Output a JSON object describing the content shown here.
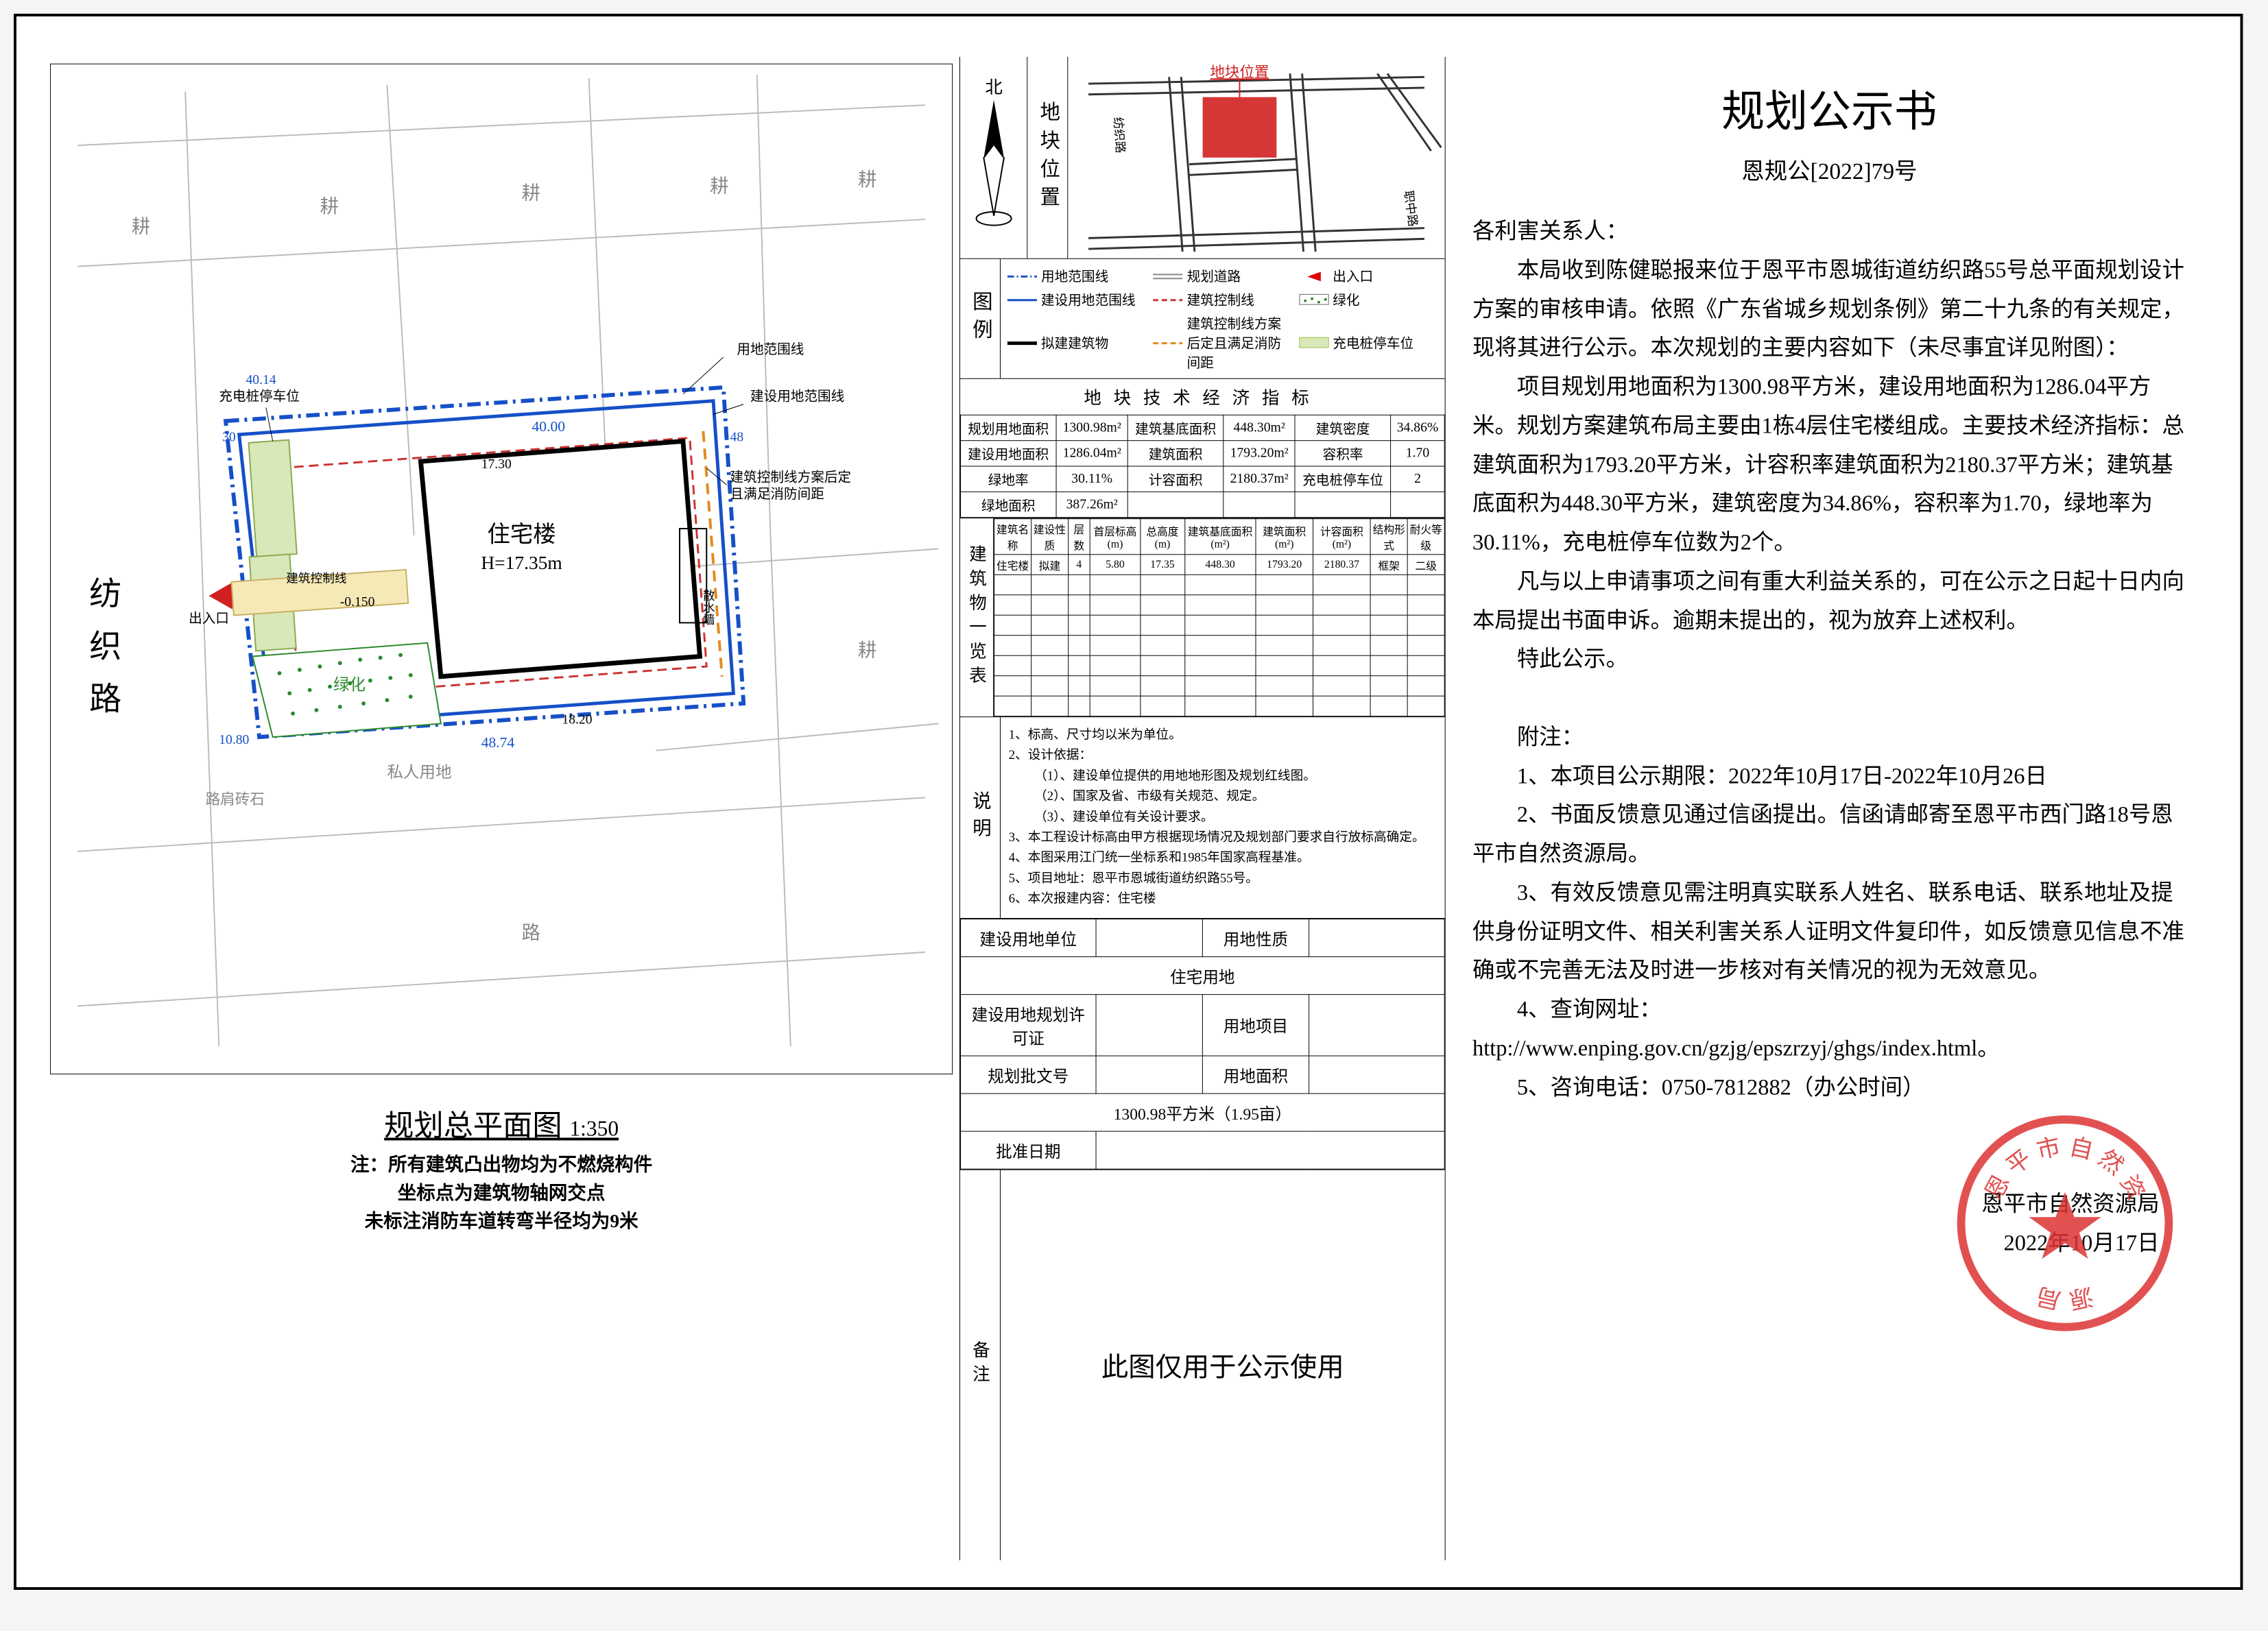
{
  "doc": {
    "title": "规划公示书",
    "number": "恩规公[2022]79号",
    "addressee": "各利害关系人：",
    "p1": "本局收到陈健聪报来位于恩平市恩城街道纺织路55号总平面规划设计方案的审核申请。依照《广东省城乡规划条例》第二十九条的有关规定，现将其进行公示。本次规划的主要内容如下（未尽事宜详见附图）：",
    "p2": "项目规划用地面积为1300.98平方米，建设用地面积为1286.04平方米。规划方案建筑布局主要由1栋4层住宅楼组成。主要技术经济指标：总建筑面积为1793.20平方米，计容积率建筑面积为2180.37平方米；建筑基底面积为448.30平方米，建筑密度为34.86%，容积率为1.70，绿地率为30.11%，充电桩停车位数为2个。",
    "p3": "凡与以上申请事项之间有重大利益关系的，可在公示之日起十日内向本局提出书面申诉。逾期未提出的，视为放弃上述权利。",
    "p4": "特此公示。",
    "annex_title": "附注：",
    "annex_1": "1、本项目公示期限：2022年10月17日-2022年10月26日",
    "annex_2": "2、书面反馈意见通过信函提出。信函请邮寄至恩平市西门路18号恩平市自然资源局。",
    "annex_3": "3、有效反馈意见需注明真实联系人姓名、联系电话、联系地址及提供身份证明文件、相关利害关系人证明文件复印件，如反馈意见信息不准确或不完善无法及时进一步核对有关情况的视为无效意见。",
    "annex_4": "4、查询网址：",
    "annex_url": "http://www.enping.gov.cn/gzjg/epszrzyj/ghgs/index.html。",
    "annex_5": "5、咨询电话：0750-7812882（办公时间）",
    "signer": "恩平市自然资源局",
    "sign_date": "2022年10月17日",
    "stamp_text_top": "市 自 然",
    "stamp_text_mid": "资",
    "stamp_text_side1": "恩平",
    "stamp_text_side2": "源局"
  },
  "plan": {
    "title": "规划总平面图",
    "scale": "1:350",
    "note1": "注：所有建筑凸出物均为不燃烧构件",
    "note2": "坐标点为建筑物轴网交点",
    "note3": "未标注消防车道转弯半径均为9米",
    "road_name": "纺织路",
    "building_label": "住宅楼",
    "building_h": "H=17.35m",
    "dim_main": "40.00",
    "dim_17_30": "17.30",
    "dim_48_74": "48.74",
    "dim_18_20": "18.20",
    "dim_48": "48",
    "entrance": "出入口",
    "line_a": "用地范围线",
    "line_b": "建设用地范围线",
    "line_c": "充电桩停车位",
    "line_d": "建筑控制线",
    "line_e": "建筑控制线方案后定且满足消防间距",
    "bldg_ctrl": "建筑控制线",
    "green": "绿化",
    "priv": "私人用地",
    "neg_015": "-0.150"
  },
  "loc": {
    "label": "地块位置",
    "marker": "地块位置"
  },
  "legend": {
    "label": "图例",
    "items": [
      {
        "name": "用地范围线",
        "color": "#1650c8",
        "style": "dash-dot"
      },
      {
        "name": "规划道路",
        "color": "#888",
        "style": "double"
      },
      {
        "name": "出入口",
        "color": "#d00",
        "style": "triangle"
      },
      {
        "name": "建设用地范围线",
        "color": "#1650c8",
        "style": "solid"
      },
      {
        "name": "建筑控制线",
        "color": "#c33",
        "style": "dash"
      },
      {
        "name": "绿化",
        "color": "#2a8a2a",
        "style": "dots"
      },
      {
        "name": "拟建建筑物",
        "color": "#000",
        "style": "thick"
      },
      {
        "name": "建筑控制线方案后定且满足消防间距",
        "color": "#e38b20",
        "style": "dash"
      },
      {
        "name": "充电桩停车位",
        "color": "#9ec245",
        "style": "fill"
      }
    ]
  },
  "econ": {
    "title": "地块技术经济指标",
    "rows": [
      [
        "规划用地面积",
        "1300.98m²",
        "建筑基底面积",
        "448.30m²",
        "建筑密度",
        "34.86%"
      ],
      [
        "建设用地面积",
        "1286.04m²",
        "建筑面积",
        "1793.20m²",
        "容积率",
        "1.70"
      ],
      [
        "绿地率",
        "30.11%",
        "计容面积",
        "2180.37m²",
        "充电桩停车位",
        "2"
      ],
      [
        "绿地面积",
        "387.26m²",
        "",
        "",
        "",
        ""
      ]
    ]
  },
  "bldg_table": {
    "label": "建筑物一览表",
    "headers": [
      "建筑名称",
      "建设性质",
      "层数",
      "首层标高(m)",
      "总高度(m)",
      "建筑基底面积(m²)",
      "建筑面积(m²)",
      "计容面积(m²)",
      "结构形式",
      "耐火等级"
    ],
    "row": [
      "住宅楼",
      "拟建",
      "4",
      "5.80",
      "17.35",
      "448.30",
      "1793.20",
      "2180.37",
      "框架",
      "二级"
    ]
  },
  "notes": {
    "label": "说明",
    "l1": "1、标高、尺寸均以米为单位。",
    "l2": "2、设计依据：",
    "l2a": "（1）、建设单位提供的用地地形图及规划红线图。",
    "l2b": "（2）、国家及省、市级有关规范、规定。",
    "l2c": "（3）、建设单位有关设计要求。",
    "l3": "3、本工程设计标高由甲方根据现场情况及规划部门要求自行放标高确定。",
    "l4": "4、本图采用江门统一坐标系和1985年国家高程基准。",
    "l5": "5、项目地址：恩平市恩城街道纺织路55号。",
    "l6": "6、本次报建内容：住宅楼"
  },
  "admin": {
    "r1a": "建设用地单位",
    "r1b": "用地性质",
    "r1c": "住宅用地",
    "r2a": "建设用地规划许可证",
    "r2b": "用地项目",
    "r3a": "规划批文号",
    "r3b": "用地面积",
    "r3c": "1300.98平方米（1.95亩）",
    "r4a": "批准日期"
  },
  "remark": {
    "label": "备注",
    "text": "此图仅用于公示使用"
  },
  "colors": {
    "blue": "#1650c8",
    "red": "#d02020",
    "orange": "#e38b20",
    "green": "#2a8a2a",
    "lightgreen": "#9ec245",
    "grey": "#888888",
    "stamp": "#d33333"
  }
}
